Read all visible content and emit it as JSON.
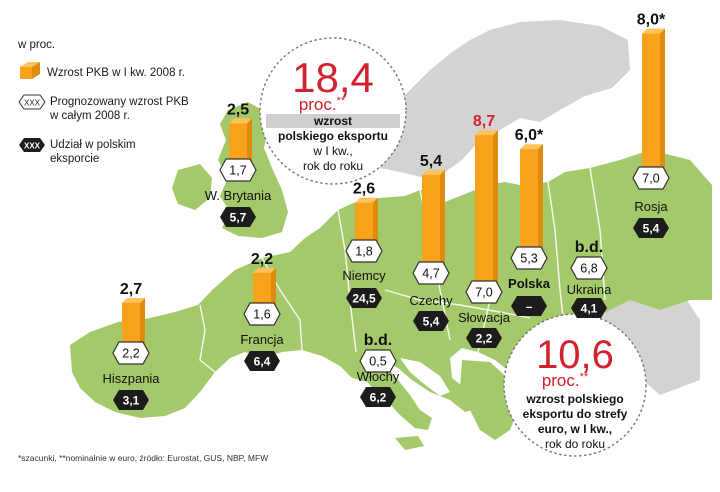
{
  "chart_data": {
    "type": "bar",
    "unit_label": "w proc.",
    "legend": {
      "gdp_q1": "Wzrost PKB w I kw. 2008 r.",
      "forecast_sample": "XXX",
      "forecast_line1": "Prognozowany wzrost PKB",
      "forecast_line2": "w całym 2008 r.",
      "share_sample": "XXX",
      "share_line1": "Udział w polskim",
      "share_line2": "eksporcie"
    },
    "countries": [
      {
        "name": "Hiszpania",
        "gdp_q1_label": "2,7",
        "gdp_q1": 2.7,
        "forecast": "2,2",
        "export_share": "3,1",
        "name_bold": false,
        "value_highlight": false
      },
      {
        "name": "W. Brytania",
        "gdp_q1_label": "2,5",
        "gdp_q1": 2.5,
        "forecast": "1,7",
        "export_share": "5,7",
        "name_bold": false,
        "value_highlight": false
      },
      {
        "name": "Francja",
        "gdp_q1_label": "2,2",
        "gdp_q1": 2.2,
        "forecast": "1,6",
        "export_share": "6,4",
        "name_bold": false,
        "value_highlight": false
      },
      {
        "name": "Niemcy",
        "gdp_q1_label": "2,6",
        "gdp_q1": 2.6,
        "forecast": "1,8",
        "export_share": "24,5",
        "name_bold": false,
        "value_highlight": false
      },
      {
        "name": "Włochy",
        "gdp_q1_label": "b.d.",
        "gdp_q1": null,
        "forecast": "0,5",
        "export_share": "6,2",
        "name_bold": false,
        "value_highlight": false
      },
      {
        "name": "Czechy",
        "gdp_q1_label": "5,4",
        "gdp_q1": 5.4,
        "forecast": "4,7",
        "export_share": "5,4",
        "name_bold": false,
        "value_highlight": false
      },
      {
        "name": "Słowacja",
        "gdp_q1_label": "8,7",
        "gdp_q1": 8.7,
        "forecast": "7,0",
        "export_share": "2,2",
        "name_bold": false,
        "value_highlight": true
      },
      {
        "name": "Polska",
        "gdp_q1_label": "6,0*",
        "gdp_q1": 6.0,
        "forecast": "5,3",
        "export_share": "–",
        "name_bold": true,
        "value_highlight": false
      },
      {
        "name": "Ukraina",
        "gdp_q1_label": "b.d.",
        "gdp_q1": null,
        "forecast": "6,8",
        "export_share": "4,1",
        "name_bold": false,
        "value_highlight": false
      },
      {
        "name": "Rosja",
        "gdp_q1_label": "8,0*",
        "gdp_q1": 8.0,
        "forecast": "7,0",
        "export_share": "5,4",
        "name_bold": false,
        "value_highlight": false
      }
    ],
    "callouts": [
      {
        "value": "18,4",
        "unit": "proc.",
        "stars": "**",
        "lines": [
          "wzrost",
          "polskiego eksportu",
          "w I kw.,",
          "rok do roku"
        ]
      },
      {
        "value": "10,6",
        "unit": "proc.",
        "stars": "**",
        "lines": [
          "wzrost polskiego",
          "eksportu do strefy",
          "euro, w I kw.,",
          "rok do roku"
        ]
      }
    ],
    "footnote": "*szacunki, **nominalnie w euro, źródło: Eurostat, GUS, NBP, MFW"
  },
  "colors": {
    "bar_main": "#f7a21b",
    "bar_side": "#e08a10",
    "bar_top": "#fcc35a",
    "land": "#a4c96a",
    "land_other": "#d3d3d3",
    "sea": "#ffffff",
    "accent_red": "#d2222e",
    "dark_badge": "#1c1c1c"
  }
}
